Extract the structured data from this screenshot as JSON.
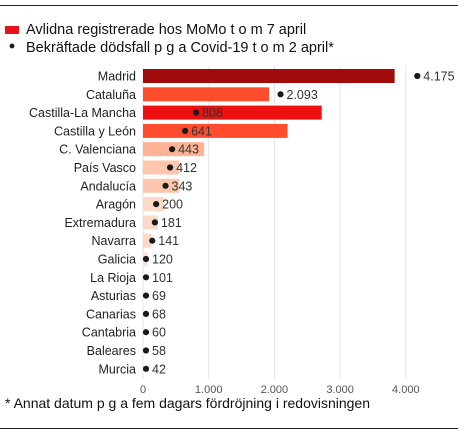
{
  "chart_data": {
    "type": "bar",
    "legend": {
      "position": "top-left",
      "bars_label": "Avlidna registrerade hos MoMo t o m 7 april",
      "dots_label": "Bekräftade dödsfall p g a Covid-19 t o m 2 april*"
    },
    "categories": [
      "Madrid",
      "Cataluña",
      "Castilla-La Mancha",
      "Castilla y León",
      "C. Valenciana",
      "País Vasco",
      "Andalucía",
      "Aragón",
      "Extremadura",
      "Navarra",
      "Galicia",
      "La Rioja",
      "Asturias",
      "Canarias",
      "Cantabria",
      "Baleares",
      "Murcia"
    ],
    "series": [
      {
        "name": "Avlidna registrerade hos MoMo t o m 7 april",
        "kind": "bar",
        "values": [
          3830,
          1920,
          2720,
          2200,
          930,
          550,
          550,
          320,
          230,
          130,
          70,
          0,
          0,
          0,
          0,
          0,
          0
        ]
      },
      {
        "name": "Bekräftade dödsfall p g a Covid-19 t o m 2 april*",
        "kind": "dot",
        "values": [
          4175,
          2093,
          808,
          641,
          443,
          412,
          343,
          200,
          181,
          141,
          120,
          101,
          69,
          68,
          60,
          58,
          42
        ],
        "labels": [
          "4.175",
          "2.093",
          "808",
          "641",
          "443",
          "412",
          "343",
          "200",
          "181",
          "141",
          "120",
          "101",
          "69",
          "68",
          "60",
          "58",
          "42"
        ]
      }
    ],
    "bar_colors": [
      "#a10b0b",
      "#ff4d2e",
      "#ee1010",
      "#ff4d2e",
      "#ffb296",
      "#ffc5ad",
      "#ffc5ad",
      "#ffd9c8",
      "#ffd9c8",
      "#ffd9c8",
      "#ffe4d6",
      "#ffeee6",
      "#ffeee6",
      "#ffeee6",
      "#ffeee6",
      "#ffeee6",
      "#ffeee6"
    ],
    "legend_bar_color": "#e8101a",
    "dot_color": "#1a1a1a",
    "xlim": [
      0,
      4300
    ],
    "xticks": [
      0,
      1000,
      2000,
      3000,
      4000
    ],
    "xtick_labels": [
      "0",
      "1.000",
      "2.000",
      "3.000",
      "4.000"
    ],
    "grid": true,
    "footnote": "* Annat datum p g a fem dagars fördröjning i redovisningen"
  }
}
